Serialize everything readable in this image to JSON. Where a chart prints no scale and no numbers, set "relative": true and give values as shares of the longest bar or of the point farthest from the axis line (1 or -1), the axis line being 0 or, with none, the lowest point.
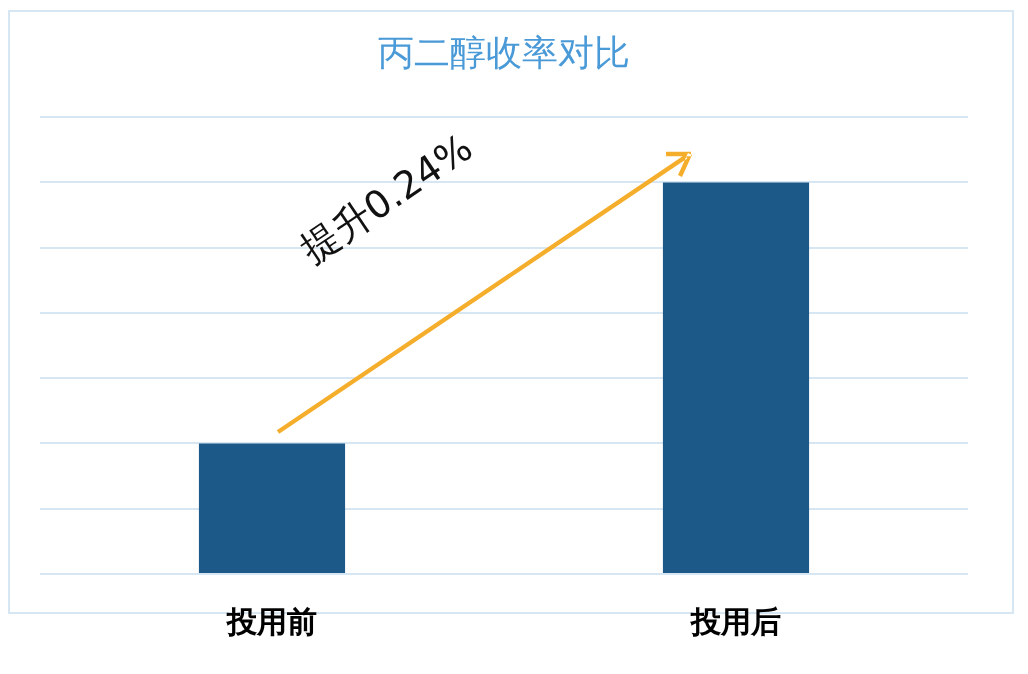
{
  "chart_data": {
    "type": "bar",
    "title": "丙二醇收率对比",
    "categories": [
      "投用前",
      "投用后"
    ],
    "values": [
      0.333,
      1
    ],
    "color": "#1c5888",
    "relative": true,
    "grid": "y",
    "legend": false,
    "annotations": [
      "提升0.24%"
    ]
  }
}
